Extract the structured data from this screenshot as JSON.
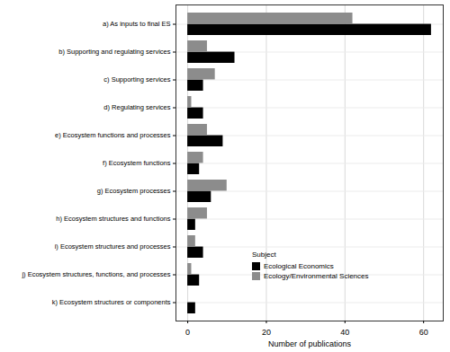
{
  "chart_data": {
    "type": "bar",
    "orientation": "horizontal",
    "categories": [
      "a) As inputs to final ES",
      "b) Supporting and regulating services",
      "c) Supporting services",
      "d) Regulating services",
      "e) Ecosystem functions and processes",
      "f) Ecosystem functions",
      "g) Ecosystem processes",
      "h) Ecosystem structures and functions",
      "i) Ecosystem structures and processes",
      "j) Ecosystem structures, functions, and processes",
      "k) Ecosystem structures or components"
    ],
    "series": [
      {
        "name": "Ecological Economics",
        "color": "#000000",
        "values": [
          62,
          12,
          4,
          4,
          9,
          3,
          6,
          2,
          4,
          3,
          2
        ]
      },
      {
        "name": "Ecology/Environmental Sciences",
        "color": "#8c8c8c",
        "values": [
          42,
          5,
          7,
          1,
          5,
          4,
          10,
          5,
          2,
          1,
          0
        ]
      }
    ],
    "xlabel": "Number of publications",
    "legend_title": "Subject",
    "xlim": [
      -3,
      65
    ],
    "xticks": [
      0,
      20,
      40,
      60
    ],
    "grid": true,
    "legend": "bottom right"
  }
}
